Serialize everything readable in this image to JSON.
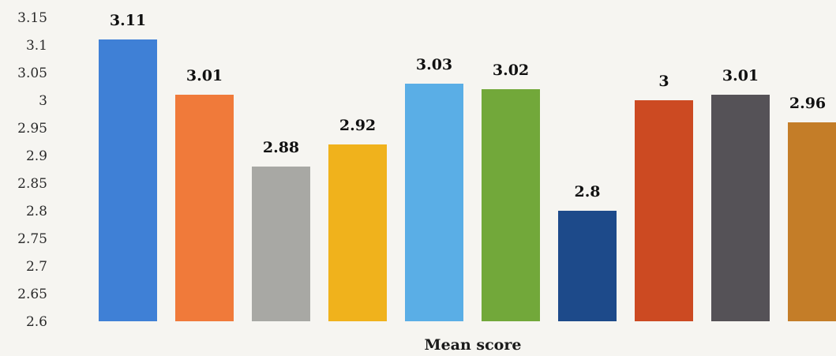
{
  "chart_data": {
    "type": "bar",
    "title": "",
    "xlabel": "Mean score",
    "ylabel": "",
    "ylim": [
      2.6,
      3.15
    ],
    "yticks": [
      2.6,
      2.65,
      2.7,
      2.75,
      2.8,
      2.85,
      2.9,
      2.95,
      3,
      3.05,
      3.1,
      3.15
    ],
    "ytick_labels": [
      "2.6",
      "2.65",
      "2.7",
      "2.75",
      "2.8",
      "2.85",
      "2.9",
      "2.95",
      "3",
      "3.05",
      "3.1",
      "3.15"
    ],
    "grid": false,
    "legend": "none",
    "values": [
      3.11,
      3.01,
      2.88,
      2.92,
      3.03,
      3.02,
      2.8,
      3,
      3.01,
      2.96
    ],
    "value_labels": [
      "3.11",
      "3.01",
      "2.88",
      "2.92",
      "3.03",
      "3.02",
      "2.8",
      "3",
      "3.01",
      "2.96"
    ],
    "colors": [
      "#3f80d6",
      "#f07a3a",
      "#a8a8a4",
      "#f0b21c",
      "#5aaee6",
      "#72a83a",
      "#1d4a8a",
      "#cc4a22",
      "#555257",
      "#c47d28"
    ]
  }
}
